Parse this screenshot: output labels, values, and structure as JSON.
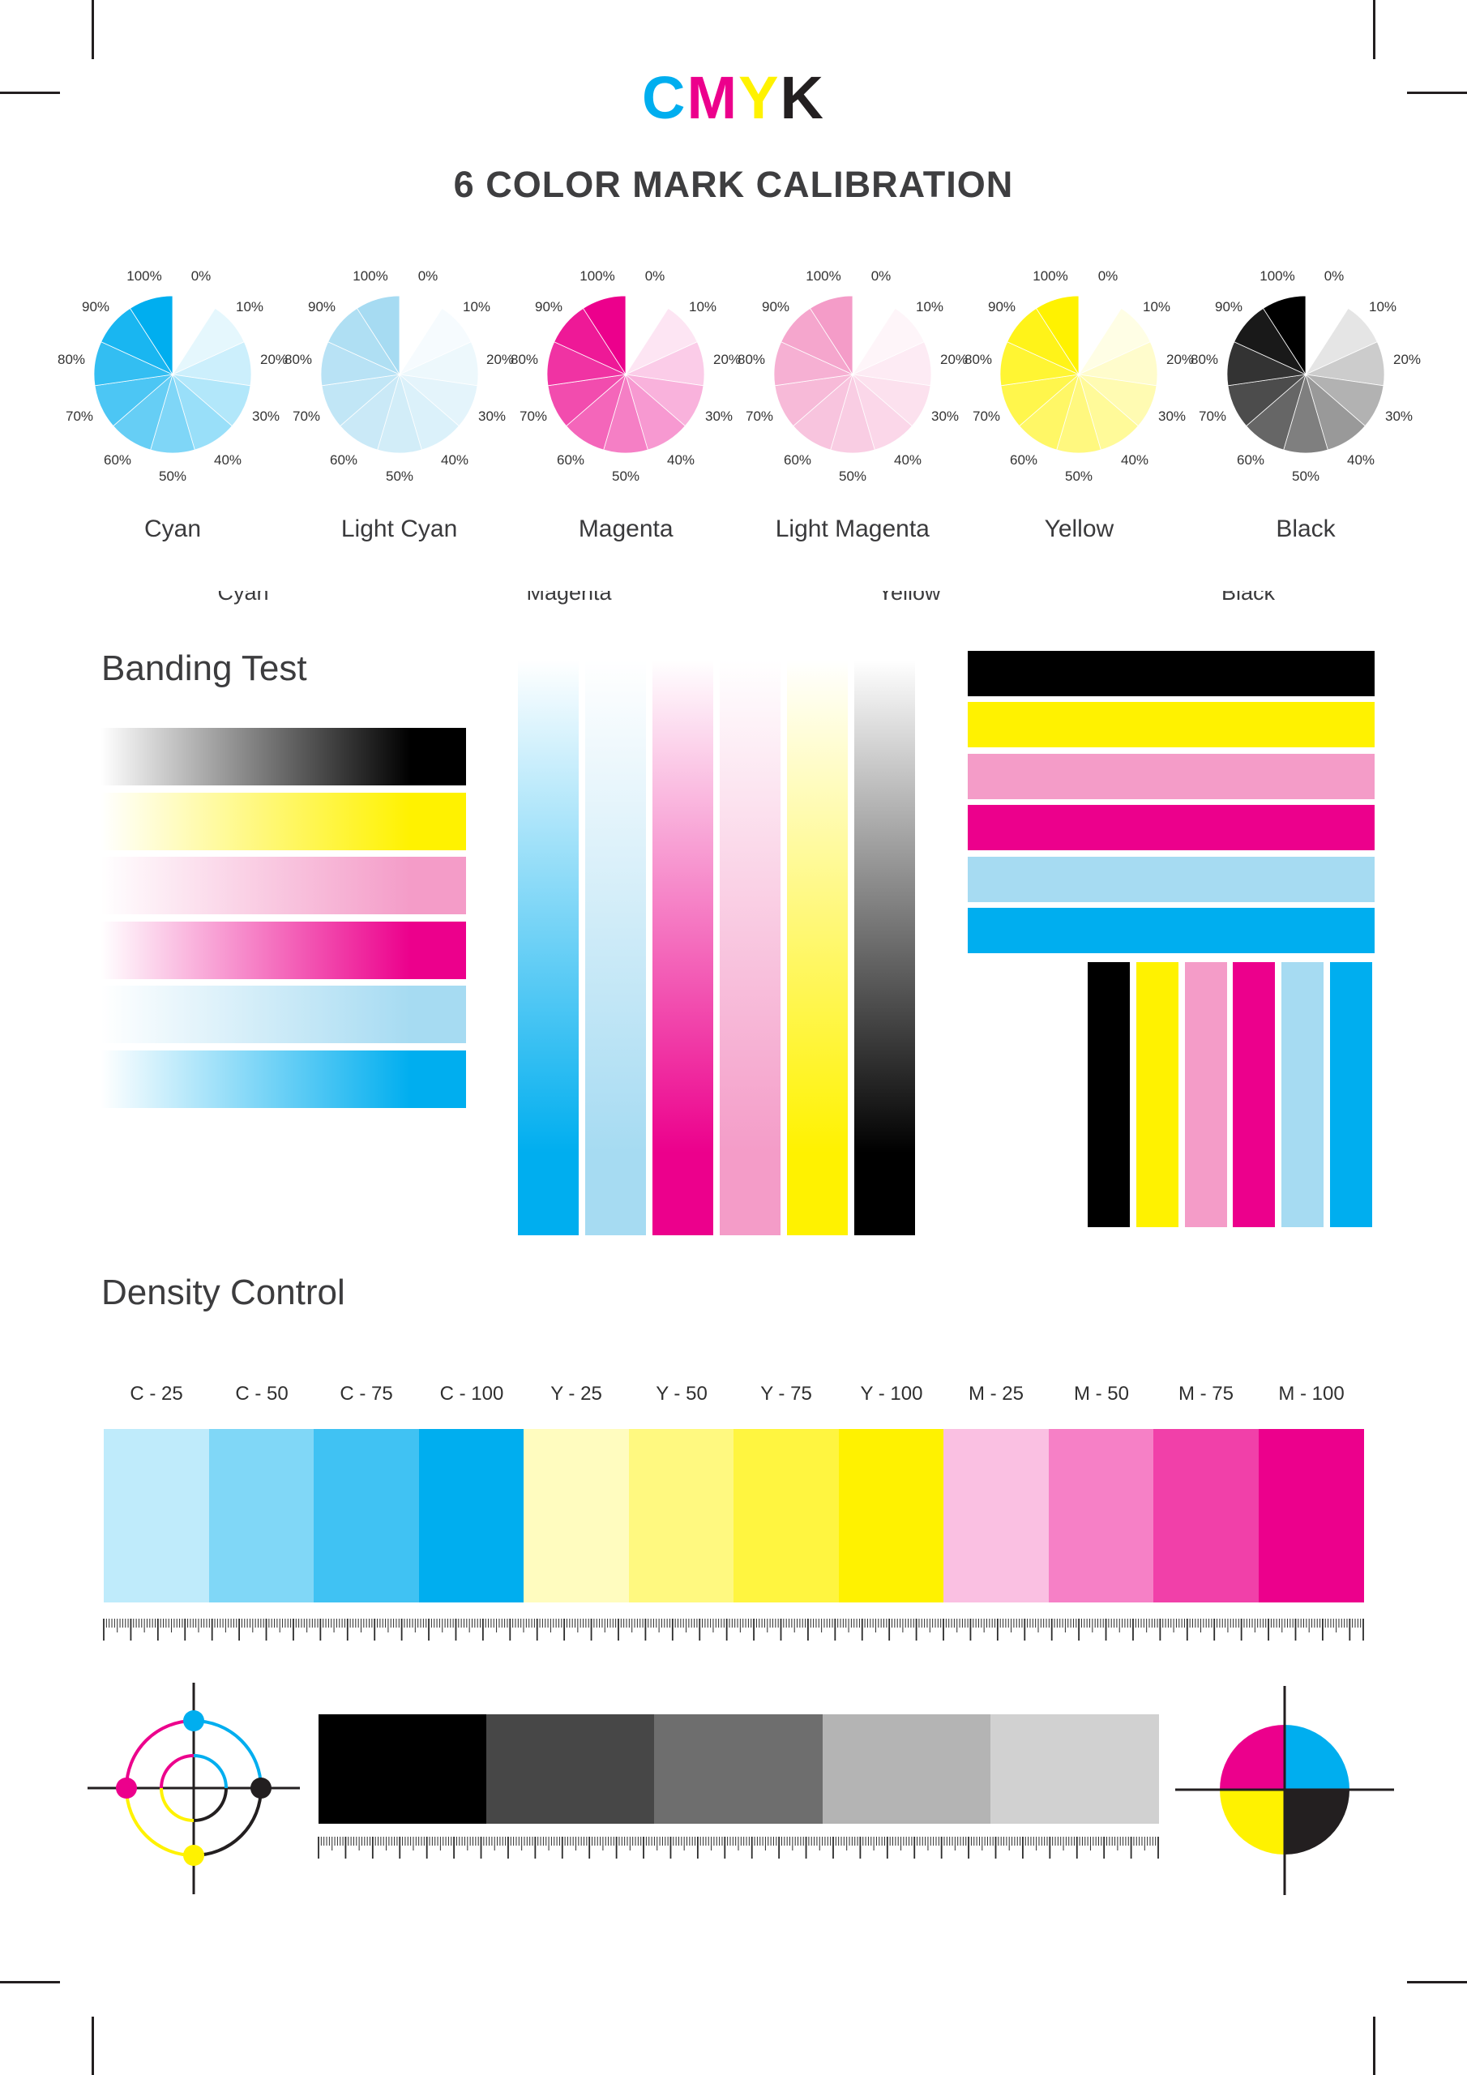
{
  "header": {
    "title_letters": [
      {
        "letter": "C",
        "color": "#00AEEF"
      },
      {
        "letter": "M",
        "color": "#EC008C"
      },
      {
        "letter": "Y",
        "color": "#FFF200"
      },
      {
        "letter": "K",
        "color": "#231F20"
      }
    ],
    "subtitle": "6 COLOR MARK CALIBRATION"
  },
  "inks": {
    "cyan": "#00AEEF",
    "light_cyan": "#A6DBF2",
    "magenta": "#EC008C",
    "light_magenta": "#F49CC8",
    "yellow": "#FFF200",
    "black": "#000000"
  },
  "pie_section": {
    "percent_labels": [
      "0%",
      "10%",
      "20%",
      "30%",
      "40%",
      "50%",
      "60%",
      "70%",
      "80%",
      "90%",
      "100%"
    ],
    "pies": [
      {
        "name": "Cyan",
        "ink": "cyan"
      },
      {
        "name": "Light Cyan",
        "ink": "light_cyan"
      },
      {
        "name": "Magenta",
        "ink": "magenta"
      },
      {
        "name": "Light Magenta",
        "ink": "light_magenta"
      },
      {
        "name": "Yellow",
        "ink": "yellow"
      },
      {
        "name": "Black",
        "ink": "black"
      }
    ]
  },
  "clipped_labels": [
    "Cyan",
    "Magenta",
    "Yellow",
    "Black"
  ],
  "banding": {
    "heading": "Banding Test",
    "left_gradient_bars": [
      "black",
      "yellow",
      "light_magenta",
      "magenta",
      "light_cyan",
      "cyan"
    ],
    "middle_vertical_gradient_bars": [
      "cyan",
      "light_cyan",
      "magenta",
      "light_magenta",
      "yellow",
      "black"
    ],
    "right_solid_bars": [
      "black",
      "yellow",
      "light_magenta",
      "magenta",
      "light_cyan",
      "cyan"
    ],
    "right_vertical_solid_bars": [
      "black",
      "yellow",
      "light_magenta",
      "magenta",
      "light_cyan",
      "cyan"
    ]
  },
  "density": {
    "heading": "Density Control",
    "swatches": [
      {
        "label": "C - 25",
        "color": "#BFEBFB"
      },
      {
        "label": "C - 50",
        "color": "#80D7F7"
      },
      {
        "label": "C - 75",
        "color": "#40C2F3"
      },
      {
        "label": "C - 100",
        "color": "#00AEEF"
      },
      {
        "label": "Y - 25",
        "color": "#FFFCBF"
      },
      {
        "label": "Y - 50",
        "color": "#FFF980"
      },
      {
        "label": "Y - 75",
        "color": "#FFF540"
      },
      {
        "label": "Y - 100",
        "color": "#FFF200"
      },
      {
        "label": "M - 25",
        "color": "#FAC0E2"
      },
      {
        "label": "M - 50",
        "color": "#F680C6"
      },
      {
        "label": "M - 75",
        "color": "#F140A9"
      },
      {
        "label": "M - 100",
        "color": "#EC008C"
      }
    ]
  },
  "grayscale_bar": {
    "segments": [
      "#000000",
      "#474747",
      "#6E6E6E",
      "#B4B4B4",
      "#D1D1D1"
    ]
  },
  "registration": {
    "quadrant_colors": {
      "top_left": "#EC008C",
      "top_right": "#00AEEF",
      "bottom_left": "#FFF200",
      "bottom_right": "#231F20"
    },
    "dot_colors": {
      "top": "#00AEEF",
      "right": "#231F20",
      "bottom": "#FFF200",
      "left": "#EC008C"
    },
    "crosshair_color": "#231F20"
  }
}
